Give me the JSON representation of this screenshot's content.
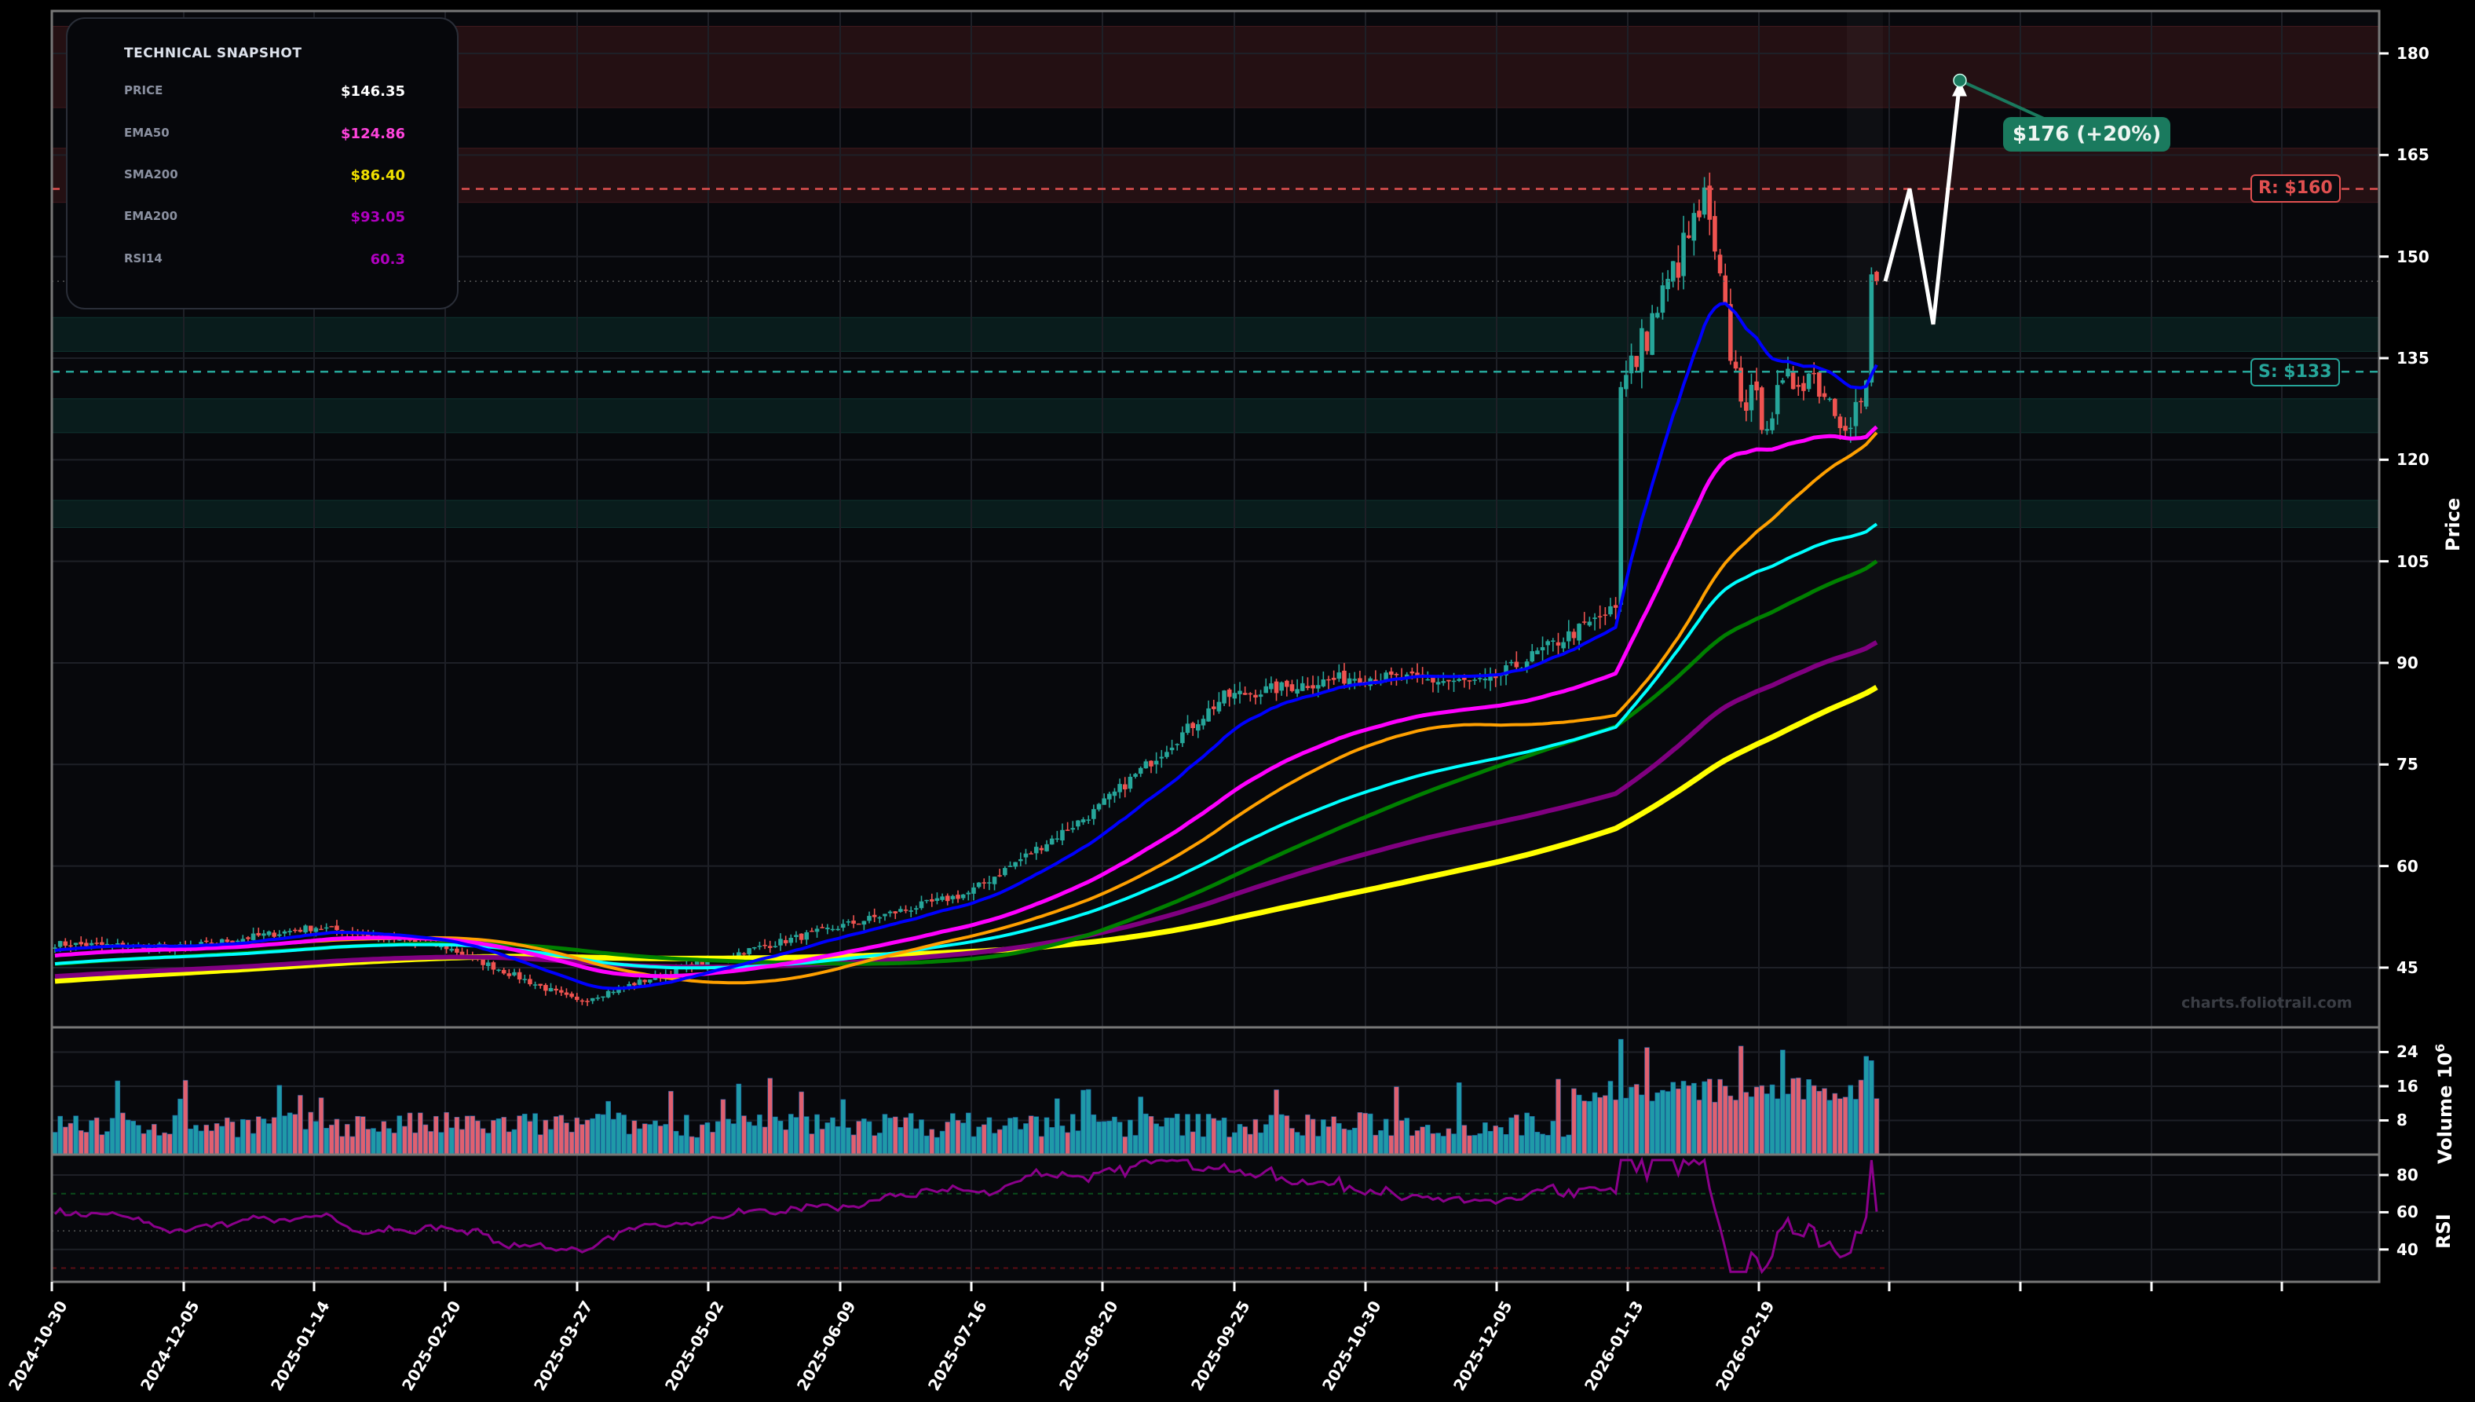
{
  "snapshot": {
    "title": "TECHNICAL SNAPSHOT",
    "rows": [
      {
        "label": "PRICE",
        "value": "$146.35",
        "color": "#ffffff"
      },
      {
        "label": "EMA50",
        "value": "$124.86",
        "color": "#ff44dd"
      },
      {
        "label": "SMA200",
        "value": "$86.40",
        "color": "#f0e000"
      },
      {
        "label": "EMA200",
        "value": "$93.05",
        "color": "#b000c0"
      },
      {
        "label": "RSI14",
        "value": "60.3",
        "color": "#b000c0"
      }
    ]
  },
  "levels": {
    "resistance_label": "R: $160",
    "support_label": "S: $133",
    "resistance_color": "#e05050",
    "support_color": "#26a69a"
  },
  "target": {
    "label": "$176 (+20%)",
    "color": "#1a7a5e"
  },
  "watermark": "charts.foliotrail.com",
  "axes": {
    "price_title": "Price",
    "volume_title": "Volume  10",
    "volume_exp": "6",
    "rsi_title": "RSI",
    "price_ticks": [
      "180",
      "165",
      "150",
      "135",
      "120",
      "105",
      "90",
      "75",
      "60",
      "45"
    ],
    "volume_ticks": [
      "24",
      "16",
      "8"
    ],
    "rsi_ticks": [
      "80",
      "60",
      "40"
    ],
    "date_ticks": [
      "2024-10-30",
      "2024-12-05",
      "2025-01-14",
      "2025-02-20",
      "2025-03-27",
      "2025-05-02",
      "2025-06-09",
      "2025-07-16",
      "2025-08-20",
      "2025-09-25",
      "2025-10-30",
      "2025-12-05",
      "2026-01-13",
      "2026-02-19"
    ]
  },
  "colors": {
    "background": "#000000",
    "panel": "#07080c",
    "up": "#26a69a",
    "down": "#ef5350",
    "ema_fast": "#0000ff",
    "ema50": "#ff00ff",
    "sma50": "#ffa000",
    "ema100": "#00ffff",
    "sma100": "#008000",
    "ema200": "#800080",
    "sma200": "#ffff00",
    "rsi": "#8b008b",
    "projection": "#ffffff"
  },
  "chart_data": {
    "type": "candlestick",
    "title": "",
    "ylabel": "Price",
    "ylim": [
      38,
      184
    ],
    "x_range": [
      "2024-10-30",
      "2026-03-25"
    ],
    "price_anchor_points": [
      {
        "date": "2024-10-30",
        "close": 48.5
      },
      {
        "date": "2024-12-05",
        "close": 48
      },
      {
        "date": "2025-01-14",
        "close": 51
      },
      {
        "date": "2025-02-20",
        "close": 48
      },
      {
        "date": "2025-03-27",
        "close": 40
      },
      {
        "date": "2025-05-02",
        "close": 46
      },
      {
        "date": "2025-06-09",
        "close": 51
      },
      {
        "date": "2025-07-16",
        "close": 56
      },
      {
        "date": "2025-08-20",
        "close": 68
      },
      {
        "date": "2025-09-25",
        "close": 85
      },
      {
        "date": "2025-10-30",
        "close": 88
      },
      {
        "date": "2025-12-05",
        "close": 87
      },
      {
        "date": "2026-01-13",
        "close": 98
      },
      {
        "date": "2026-02-19",
        "close": 155
      },
      {
        "date": "2026-03-24",
        "close": 146.35
      }
    ],
    "moving_averages_last": {
      "EMA20": 134,
      "EMA50": 124.86,
      "SMA50": 124,
      "EMA100": 110.5,
      "SMA100": 105,
      "EMA200": 93.05,
      "SMA200": 86.4
    },
    "resistance": 160,
    "support": 133,
    "resistance_zones": [
      [
        172,
        184
      ],
      [
        158,
        166
      ]
    ],
    "support_zones": [
      [
        136,
        141
      ],
      [
        124,
        129
      ],
      [
        110,
        114
      ]
    ],
    "projection_path": [
      146.35,
      160,
      140,
      176
    ],
    "target": {
      "price": 176,
      "change_pct": 20
    },
    "volume": {
      "unit": "millions",
      "ylim": [
        0,
        28
      ],
      "ticks": [
        8,
        16,
        24
      ],
      "max_recent": 27
    },
    "rsi": {
      "period": 14,
      "last": 60.3,
      "overbought": 70,
      "oversold": 30,
      "ticks": [
        40,
        60,
        80
      ]
    }
  }
}
